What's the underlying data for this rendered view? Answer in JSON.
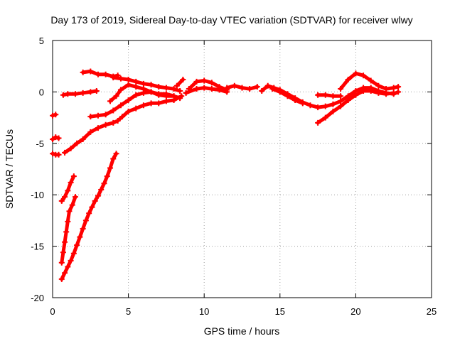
{
  "chart_data": {
    "type": "scatter",
    "title": "Day 173 of 2019, Sidereal Day-to-day VTEC variation (SDTVAR) for receiver wlwy",
    "xlabel": "GPS time / hours",
    "ylabel": "SDTVAR / TECUs",
    "xlim": [
      0,
      25
    ],
    "ylim": [
      -20,
      5
    ],
    "xticks": [
      0,
      5,
      10,
      15,
      20,
      25
    ],
    "yticks": [
      -20,
      -15,
      -10,
      -5,
      0,
      5
    ],
    "xtick_labels": [
      "0",
      "5",
      "10",
      "15",
      "20",
      "25"
    ],
    "ytick_labels": [
      "-20",
      "-15",
      "-10",
      "-5",
      "0",
      "5"
    ],
    "grid": true,
    "marker": "plus",
    "color": "#ff0000",
    "series": [
      {
        "name": "arc-1",
        "points": [
          [
            0.0,
            -2.3
          ],
          [
            0.2,
            -2.2
          ]
        ]
      },
      {
        "name": "arc-2",
        "points": [
          [
            0.0,
            -4.6
          ],
          [
            0.2,
            -4.4
          ],
          [
            0.4,
            -4.5
          ]
        ]
      },
      {
        "name": "arc-3",
        "points": [
          [
            0.0,
            -6.0
          ],
          [
            0.2,
            -6.1
          ],
          [
            0.4,
            -6.1
          ]
        ]
      },
      {
        "name": "arc-4",
        "points": [
          [
            0.7,
            -0.3
          ],
          [
            1.0,
            -0.2
          ],
          [
            1.5,
            -0.2
          ],
          [
            2.0,
            -0.1
          ],
          [
            2.5,
            0.0
          ],
          [
            2.9,
            0.1
          ]
        ]
      },
      {
        "name": "arc-5",
        "points": [
          [
            2.0,
            1.9
          ],
          [
            2.5,
            2.0
          ],
          [
            3.0,
            1.7
          ],
          [
            3.5,
            1.7
          ],
          [
            4.0,
            1.5
          ],
          [
            4.3,
            1.6
          ]
        ]
      },
      {
        "name": "arc-6",
        "points": [
          [
            4.0,
            1.4
          ],
          [
            4.5,
            1.3
          ],
          [
            5.0,
            1.2
          ],
          [
            5.5,
            1.0
          ],
          [
            6.0,
            0.8
          ],
          [
            6.5,
            0.7
          ],
          [
            7.0,
            0.5
          ],
          [
            7.5,
            0.4
          ],
          [
            8.0,
            0.3
          ],
          [
            8.4,
            0.1
          ]
        ]
      },
      {
        "name": "arc-7",
        "points": [
          [
            3.8,
            -0.9
          ],
          [
            4.2,
            -0.4
          ],
          [
            4.5,
            0.2
          ],
          [
            5.0,
            0.7
          ],
          [
            5.5,
            0.5
          ],
          [
            6.0,
            0.3
          ],
          [
            6.5,
            0.0
          ],
          [
            7.0,
            -0.3
          ],
          [
            7.5,
            -0.4
          ],
          [
            8.0,
            -0.4
          ]
        ]
      },
      {
        "name": "arc-8",
        "points": [
          [
            2.5,
            -2.4
          ],
          [
            3.0,
            -2.3
          ],
          [
            3.5,
            -2.2
          ],
          [
            4.0,
            -1.8
          ],
          [
            4.5,
            -1.3
          ],
          [
            5.0,
            -0.8
          ],
          [
            5.5,
            -0.3
          ],
          [
            6.0,
            -0.1
          ],
          [
            6.5,
            0.0
          ],
          [
            7.0,
            -0.2
          ],
          [
            7.5,
            -0.2
          ],
          [
            8.0,
            -0.4
          ],
          [
            8.4,
            -0.6
          ]
        ]
      },
      {
        "name": "arc-9",
        "points": [
          [
            0.8,
            -5.9
          ],
          [
            1.2,
            -5.5
          ],
          [
            1.6,
            -5.0
          ],
          [
            2.0,
            -4.6
          ],
          [
            2.5,
            -3.9
          ],
          [
            3.0,
            -3.5
          ],
          [
            3.5,
            -3.2
          ],
          [
            4.0,
            -3.0
          ],
          [
            4.3,
            -2.8
          ],
          [
            4.6,
            -2.4
          ],
          [
            5.0,
            -1.9
          ],
          [
            5.5,
            -1.6
          ],
          [
            6.0,
            -1.3
          ],
          [
            6.5,
            -1.1
          ],
          [
            7.0,
            -1.1
          ],
          [
            7.5,
            -0.9
          ],
          [
            8.0,
            -0.8
          ],
          [
            8.5,
            -0.4
          ]
        ]
      },
      {
        "name": "arc-10",
        "points": [
          [
            8.2,
            0.6
          ],
          [
            8.6,
            1.2
          ]
        ]
      },
      {
        "name": "arc-11",
        "points": [
          [
            9.0,
            0.3
          ],
          [
            9.5,
            1.0
          ],
          [
            10.0,
            1.1
          ],
          [
            10.5,
            0.9
          ],
          [
            11.0,
            0.5
          ],
          [
            11.5,
            0.2
          ]
        ]
      },
      {
        "name": "arc-12",
        "points": [
          [
            8.8,
            -0.1
          ],
          [
            9.5,
            0.3
          ],
          [
            10.0,
            0.4
          ],
          [
            10.5,
            0.3
          ],
          [
            11.0,
            0.2
          ],
          [
            11.5,
            0.0
          ]
        ]
      },
      {
        "name": "arc-13",
        "points": [
          [
            11.5,
            0.4
          ],
          [
            12.0,
            0.6
          ],
          [
            12.5,
            0.4
          ],
          [
            13.0,
            0.3
          ],
          [
            13.5,
            0.5
          ]
        ]
      },
      {
        "name": "arc-14",
        "points": [
          [
            13.8,
            0.1
          ],
          [
            14.2,
            0.6
          ],
          [
            14.6,
            0.4
          ],
          [
            15.0,
            0.2
          ],
          [
            15.5,
            -0.2
          ],
          [
            16.0,
            -0.6
          ],
          [
            16.5,
            -1.0
          ],
          [
            17.0,
            -1.3
          ],
          [
            17.5,
            -1.5
          ],
          [
            18.0,
            -1.4
          ],
          [
            18.5,
            -1.2
          ],
          [
            19.0,
            -0.9
          ],
          [
            19.5,
            -0.4
          ],
          [
            20.0,
            0.1
          ],
          [
            20.5,
            0.4
          ],
          [
            21.0,
            0.4
          ],
          [
            21.5,
            0.1
          ],
          [
            22.0,
            -0.1
          ],
          [
            22.5,
            -0.2
          ],
          [
            22.8,
            0.0
          ]
        ]
      },
      {
        "name": "arc-15",
        "points": [
          [
            14.5,
            0.3
          ],
          [
            15.0,
            0.0
          ],
          [
            15.5,
            -0.4
          ],
          [
            16.0,
            -0.8
          ],
          [
            16.5,
            -1.1
          ]
        ]
      },
      {
        "name": "arc-16",
        "points": [
          [
            17.5,
            -0.3
          ],
          [
            18.0,
            -0.3
          ],
          [
            18.5,
            -0.4
          ],
          [
            19.0,
            -0.4
          ]
        ]
      },
      {
        "name": "arc-17",
        "points": [
          [
            17.5,
            -3.0
          ],
          [
            18.0,
            -2.5
          ],
          [
            18.5,
            -1.9
          ],
          [
            19.0,
            -1.4
          ],
          [
            19.5,
            -0.8
          ],
          [
            20.0,
            -0.3
          ],
          [
            20.5,
            0.1
          ],
          [
            21.0,
            0.1
          ],
          [
            21.5,
            -0.1
          ],
          [
            22.0,
            -0.2
          ],
          [
            22.5,
            -0.1
          ]
        ]
      },
      {
        "name": "arc-18",
        "points": [
          [
            19.0,
            0.3
          ],
          [
            19.5,
            1.2
          ],
          [
            20.0,
            1.8
          ],
          [
            20.5,
            1.6
          ],
          [
            21.0,
            1.1
          ],
          [
            21.5,
            0.6
          ],
          [
            22.0,
            0.3
          ],
          [
            22.5,
            0.4
          ],
          [
            22.8,
            0.5
          ]
        ]
      },
      {
        "name": "arc-19",
        "points": [
          [
            0.6,
            -10.6
          ],
          [
            0.8,
            -10.2
          ],
          [
            1.0,
            -9.6
          ],
          [
            1.2,
            -8.8
          ],
          [
            1.4,
            -8.2
          ]
        ]
      },
      {
        "name": "arc-20",
        "points": [
          [
            0.6,
            -16.6
          ],
          [
            0.7,
            -15.6
          ],
          [
            0.8,
            -14.6
          ],
          [
            0.9,
            -13.6
          ],
          [
            1.0,
            -12.6
          ],
          [
            1.1,
            -11.6
          ],
          [
            1.3,
            -11.0
          ],
          [
            1.5,
            -10.2
          ]
        ]
      },
      {
        "name": "arc-21",
        "points": [
          [
            0.6,
            -18.2
          ],
          [
            0.8,
            -17.6
          ],
          [
            1.0,
            -17.0
          ],
          [
            1.2,
            -16.4
          ],
          [
            1.4,
            -15.7
          ],
          [
            1.6,
            -14.9
          ],
          [
            1.8,
            -14.1
          ],
          [
            2.0,
            -13.3
          ],
          [
            2.2,
            -12.5
          ],
          [
            2.4,
            -11.8
          ],
          [
            2.6,
            -11.2
          ],
          [
            2.8,
            -10.6
          ],
          [
            3.0,
            -10.1
          ],
          [
            3.2,
            -9.5
          ],
          [
            3.4,
            -8.9
          ],
          [
            3.6,
            -8.2
          ],
          [
            3.8,
            -7.4
          ],
          [
            4.0,
            -6.5
          ],
          [
            4.2,
            -6.0
          ]
        ]
      }
    ]
  }
}
